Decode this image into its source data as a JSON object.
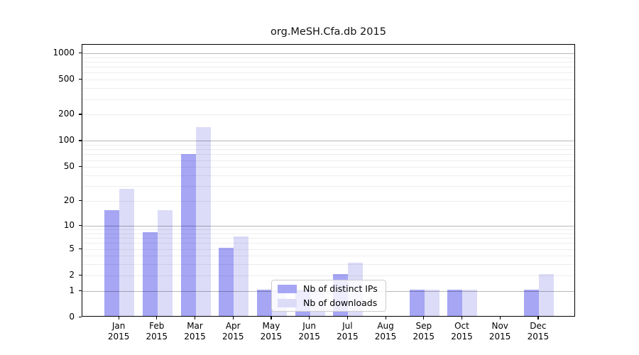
{
  "chart_data": {
    "type": "bar",
    "title": "org.MeSH.Cfa.db 2015",
    "x_months": [
      "Jan",
      "Feb",
      "Mar",
      "Apr",
      "May",
      "Jun",
      "Jul",
      "Aug",
      "Sep",
      "Oct",
      "Nov",
      "Dec"
    ],
    "year": "2015",
    "y_scale": "log10(1+x)",
    "y_ticks": [
      0,
      1,
      2,
      5,
      10,
      20,
      50,
      100,
      200,
      500,
      1000
    ],
    "ylim": [
      0,
      1250
    ],
    "grid": true,
    "legend_position": "lower-center-left-inside",
    "series": [
      {
        "name": "Nb of distinct IPs",
        "color": "#a6a6f5",
        "values": [
          15,
          8,
          68,
          5,
          1,
          1,
          2,
          0,
          1,
          1,
          0,
          1
        ]
      },
      {
        "name": "Nb of downloads",
        "color": "#dcdcf8",
        "values": [
          27,
          15,
          140,
          7,
          1,
          1,
          3,
          0,
          1,
          1,
          0,
          2
        ]
      }
    ]
  },
  "colors": {
    "axis": "#000000",
    "background": "#ffffff",
    "legend_border": "#cccccc",
    "minor_grid": "rgba(0,0,0,0.07)",
    "major_grid": "rgba(0,0,0,0.28)"
  }
}
